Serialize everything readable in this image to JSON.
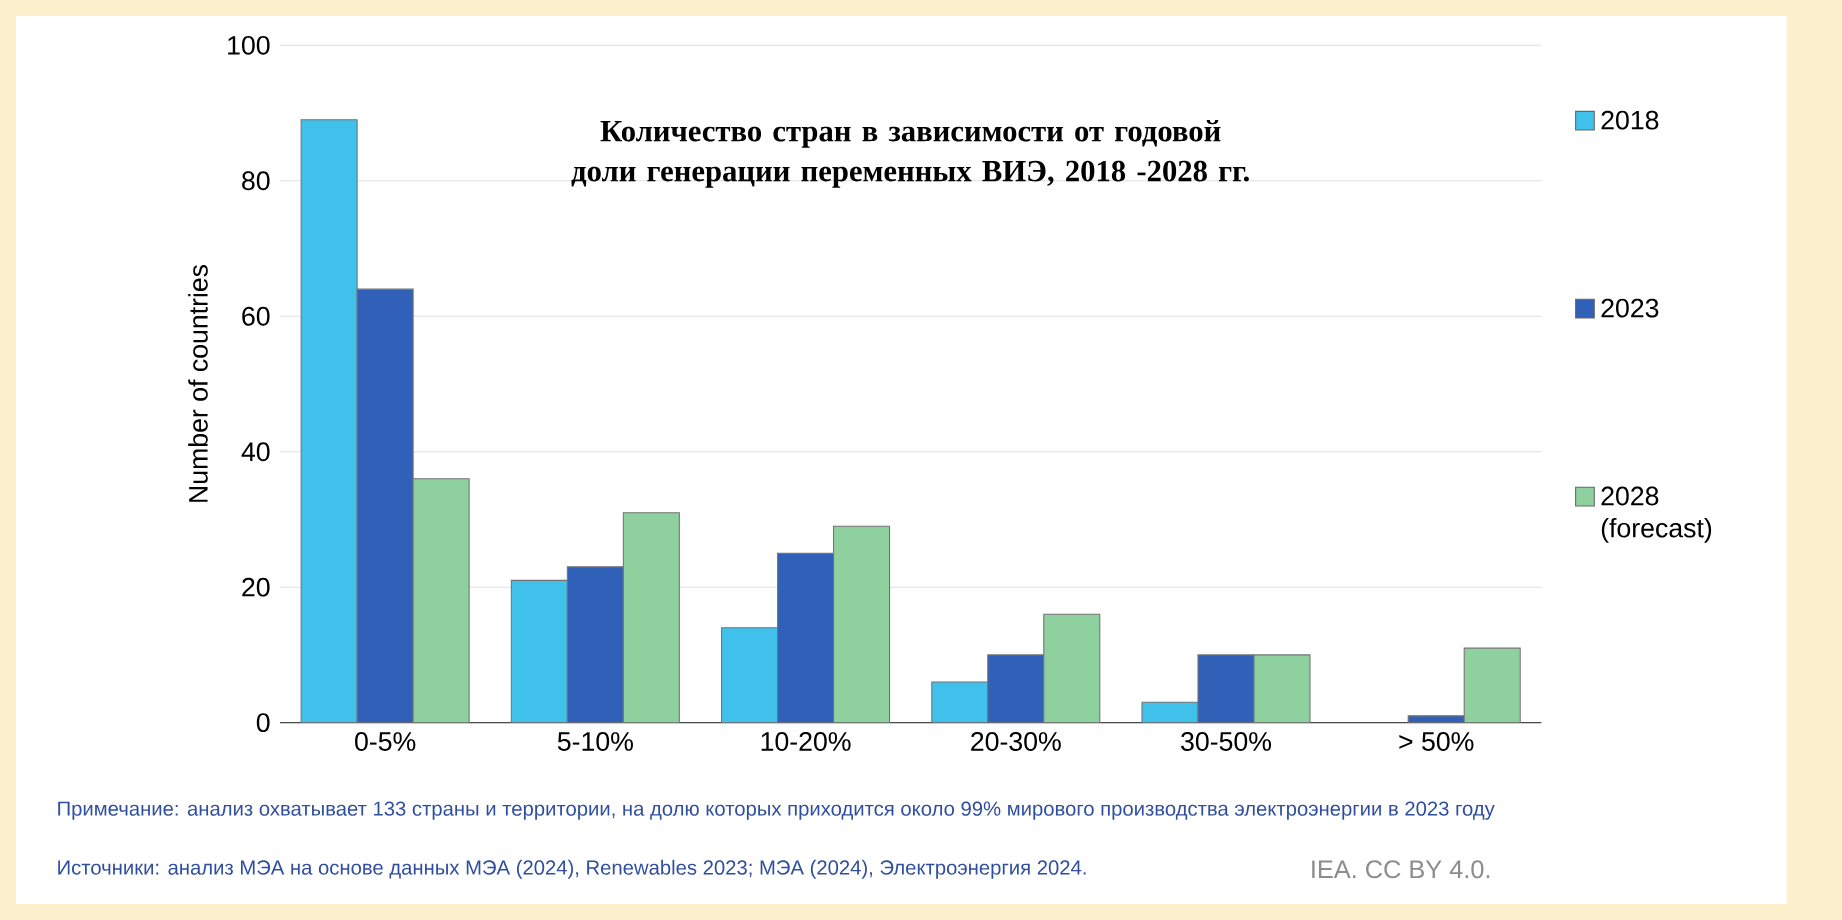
{
  "chart_data": {
    "type": "bar",
    "title": "Количество стран в зависимости от годовой доли генерации переменных ВИЭ, 2018 -2028 гг.",
    "ylabel": "Number of countries",
    "categories": [
      "0-5%",
      "5-10%",
      "10-20%",
      "20-30%",
      "30-50%",
      "> 50%"
    ],
    "series": [
      {
        "name": "2018",
        "color": "#3fc1ec",
        "values": [
          89,
          21,
          14,
          6,
          3,
          null
        ]
      },
      {
        "name": "2023",
        "color": "#3060b8",
        "values": [
          64,
          23,
          25,
          10,
          10,
          1
        ]
      },
      {
        "name": "2028 (forecast)",
        "color": "#8fd19e",
        "values": [
          36,
          31,
          29,
          16,
          10,
          11
        ]
      }
    ],
    "ylim": [
      0,
      100
    ],
    "yticks": [
      0,
      20,
      40,
      60,
      80,
      100
    ],
    "grid": "y",
    "legend": "right",
    "annotations": [
      "Примечание: анализ охватывает 133 страны и территории, на долю которых приходится около 99% мирового производства электроэнергии в 2023 году",
      "Источники: анализ МЭА на основе данных МЭА (2024), Renewables 2023; МЭА (2024), Электроэнергия 2024.",
      "IEA. CC BY 4.0."
    ]
  }
}
